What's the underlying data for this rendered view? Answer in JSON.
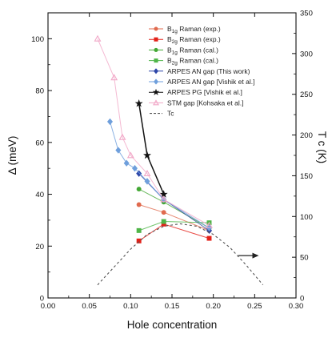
{
  "chart_data": {
    "type": "scatter",
    "title": "",
    "xlabel": "Hole concentration",
    "ylabel_left": "Δ (meV)",
    "ylabel_right": "T c (K)",
    "xlim": [
      0.0,
      0.3
    ],
    "ylim_left": [
      0,
      110
    ],
    "ylim_right": [
      0,
      350
    ],
    "x_ticks": [
      "0.00",
      "0.05",
      "0.10",
      "0.15",
      "0.20",
      "0.25",
      "0.30"
    ],
    "y_ticks_left": [
      "0",
      "20",
      "40",
      "60",
      "80",
      "100"
    ],
    "y_ticks_right": [
      "0",
      "50",
      "100",
      "150",
      "200",
      "250",
      "300",
      "350"
    ],
    "grid": false,
    "legend_position": "top-right",
    "series": [
      {
        "name": "B1g Raman (exp.)",
        "legend_main": "B",
        "legend_sub": "1g",
        "legend_rest": " Raman (exp.)",
        "color": "#e06a4e",
        "marker": "circle",
        "axis": "left",
        "x": [
          0.11,
          0.14,
          0.195
        ],
        "y": [
          36,
          33,
          26
        ]
      },
      {
        "name": "B2g Raman (exp.)",
        "legend_main": "B",
        "legend_sub": "2g",
        "legend_rest": " Raman (exp.)",
        "color": "#e32119",
        "marker": "square",
        "axis": "left",
        "x": [
          0.11,
          0.14,
          0.195
        ],
        "y": [
          22,
          28.5,
          23
        ]
      },
      {
        "name": "B1g Raman (cal.)",
        "legend_main": "B",
        "legend_sub": "1g",
        "legend_rest": " Raman (cal.)",
        "color": "#43a835",
        "marker": "circle",
        "axis": "left",
        "x": [
          0.11,
          0.14,
          0.195
        ],
        "y": [
          42,
          37,
          27
        ]
      },
      {
        "name": "B2g Raman (cal.)",
        "legend_main": "B",
        "legend_sub": "2g",
        "legend_rest": " Raman (cal.)",
        "color": "#4fb548",
        "marker": "square",
        "axis": "left",
        "x": [
          0.11,
          0.14,
          0.195
        ],
        "y": [
          26,
          29.5,
          29
        ]
      },
      {
        "name": "ARPES AN gap (This work)",
        "legend_main": "ARPES AN gap (This work)",
        "legend_sub": "",
        "legend_rest": "",
        "color": "#2c45a8",
        "marker": "diamond",
        "axis": "left",
        "x": [
          0.11,
          0.14,
          0.195
        ],
        "y": [
          48,
          38,
          26
        ]
      },
      {
        "name": "ARPES AN gap [Vishik et al.]",
        "legend_main": "ARPES AN gap [Vishik et al.]",
        "legend_sub": "",
        "legend_rest": "",
        "color": "#6f9fdc",
        "marker": "diamond",
        "axis": "left",
        "x": [
          0.075,
          0.085,
          0.095,
          0.105,
          0.12,
          0.14,
          0.195
        ],
        "y": [
          68,
          57,
          52,
          50,
          45,
          38,
          27
        ]
      },
      {
        "name": "ARPES PG [Vishik et al.]",
        "legend_main": "ARPES PG [Vishik et al.]",
        "legend_sub": "",
        "legend_rest": "",
        "color": "#111111",
        "marker": "star",
        "axis": "left",
        "x": [
          0.11,
          0.12,
          0.14
        ],
        "y": [
          75,
          55,
          40
        ]
      },
      {
        "name": "STM gap [Kohsaka et al.]",
        "legend_main": "STM gap [Kohsaka et al.]",
        "legend_sub": "",
        "legend_rest": "",
        "color": "#f1a7c7",
        "marker": "triangle",
        "axis": "left",
        "x": [
          0.06,
          0.08,
          0.09,
          0.1,
          0.12,
          0.14,
          0.195
        ],
        "y": [
          100,
          85,
          62,
          55,
          48,
          38,
          28
        ]
      },
      {
        "name": "Tc",
        "legend_main": "Tc",
        "legend_sub": "",
        "legend_rest": "",
        "color": "#555555",
        "marker": "none",
        "line_style": "dashed",
        "axis": "right",
        "x": [
          0.06,
          0.08,
          0.1,
          0.12,
          0.14,
          0.16,
          0.18,
          0.2,
          0.22,
          0.24,
          0.26
        ],
        "y": [
          16,
          38,
          60,
          78,
          88,
          91,
          88,
          78,
          62,
          40,
          16
        ]
      }
    ],
    "annotations": [
      {
        "type": "arrow",
        "direction": "right",
        "axis": "right",
        "x_start": 0.23,
        "x_end": 0.255,
        "y": 52
      }
    ]
  }
}
